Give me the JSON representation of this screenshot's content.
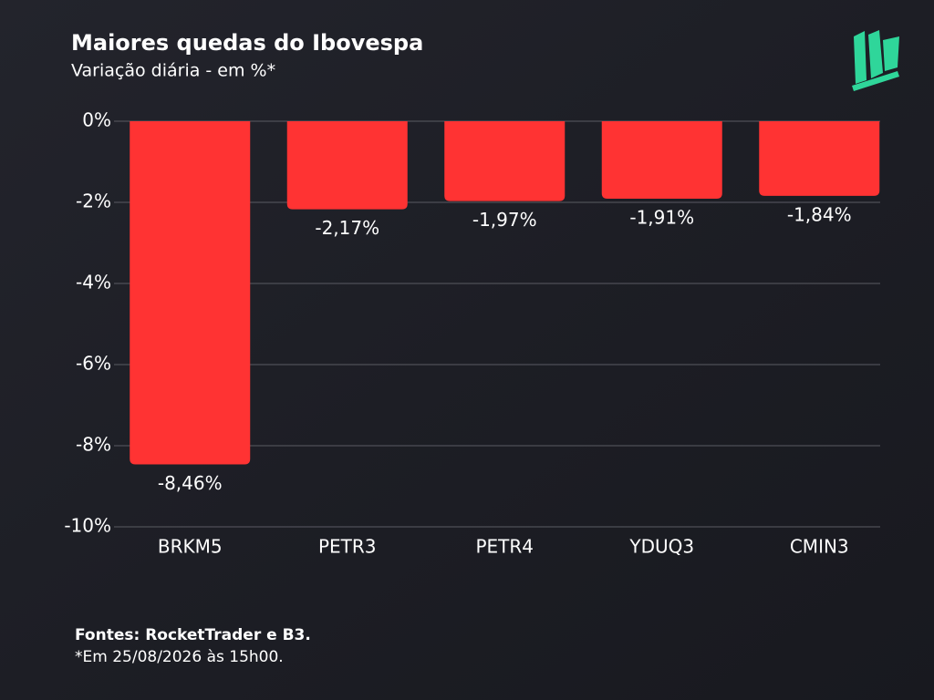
{
  "chart_data": {
    "type": "bar",
    "title": "Maiores quedas do Ibovespa",
    "subtitle": "Variação diária - em %*",
    "categories": [
      "BRKM5",
      "PETR3",
      "PETR4",
      "YDUQ3",
      "CMIN3"
    ],
    "values": [
      -8.46,
      -2.17,
      -1.97,
      -1.91,
      -1.84
    ],
    "value_labels": [
      "-8,46%",
      "-2,17%",
      "-1,97%",
      "-1,91%",
      "-1,84%"
    ],
    "color": "#ff3333",
    "ylim": [
      0,
      -10
    ],
    "yticks": [
      {
        "value": 0,
        "label": "0%"
      },
      {
        "value": -2,
        "label": "-2%"
      },
      {
        "value": -4,
        "label": "-4%"
      },
      {
        "value": -6,
        "label": "-6%"
      },
      {
        "value": -8,
        "label": "-8%"
      },
      {
        "value": -10,
        "label": "-10%"
      }
    ],
    "grid": true,
    "source": "Fontes: RocketTrader e B3.",
    "footnote": "*Em 25/08/2026 às 15h00."
  }
}
